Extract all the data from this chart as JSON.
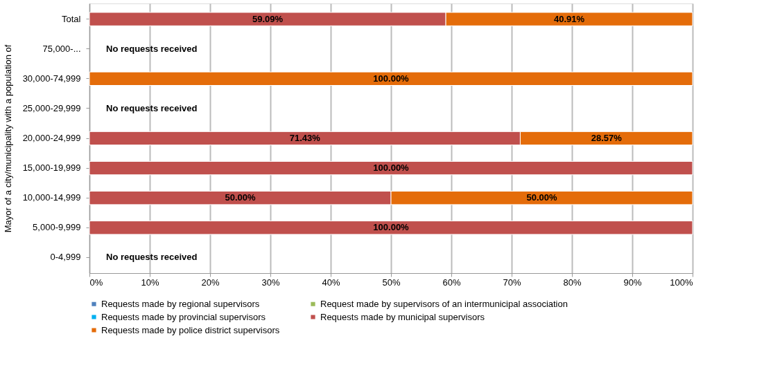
{
  "chart_data": {
    "type": "bar",
    "orientation": "horizontal",
    "stacked": true,
    "ylabel": "Mayor of a city/municipality with a population of",
    "categories": [
      "Total",
      "75,000-...",
      "30,000-74,999",
      "25,000-29,999",
      "20,000-24,999",
      "15,000-19,999",
      "10,000-14,999",
      "5,000-9,999",
      "0-4,999"
    ],
    "series": [
      {
        "name": "Requests made by regional supervisors",
        "color": "#4f81bd",
        "values": [
          null,
          null,
          null,
          null,
          null,
          null,
          null,
          null,
          null
        ]
      },
      {
        "name": "Request made by supervisors of an intermunicipal association",
        "color": "#9bbb59",
        "values": [
          null,
          null,
          null,
          null,
          null,
          null,
          null,
          null,
          null
        ]
      },
      {
        "name": "Requests made by provincial supervisors",
        "color": "#00b0f0",
        "values": [
          null,
          null,
          null,
          null,
          null,
          null,
          null,
          null,
          null
        ]
      },
      {
        "name": "Requests made by municipal supervisors",
        "color": "#c0504d",
        "values": [
          59.09,
          null,
          null,
          null,
          71.43,
          100,
          50,
          100,
          null
        ],
        "value_labels": [
          "59.09%",
          null,
          null,
          null,
          "71.43%",
          "100.00%",
          "50.00%",
          "100.00%",
          null
        ]
      },
      {
        "name": "Requests made by police district supervisors",
        "color": "#e46c0a",
        "values": [
          40.91,
          null,
          100,
          null,
          28.57,
          null,
          50,
          null,
          null
        ],
        "value_labels": [
          "40.91%",
          null,
          "100.00%",
          null,
          "28.57%",
          null,
          "50.00%",
          null,
          null
        ]
      }
    ],
    "xlim": [
      0,
      100
    ],
    "xticks": [
      {
        "value": 0,
        "label": "0%"
      },
      {
        "value": 10,
        "label": "10%"
      },
      {
        "value": 20,
        "label": "20%"
      },
      {
        "value": 30,
        "label": "30%"
      },
      {
        "value": 40,
        "label": "40%"
      },
      {
        "value": 50,
        "label": "50%"
      },
      {
        "value": 60,
        "label": "60%"
      },
      {
        "value": 70,
        "label": "70%"
      },
      {
        "value": 80,
        "label": "80%"
      },
      {
        "value": 90,
        "label": "90%"
      },
      {
        "value": 100,
        "label": "100%"
      }
    ],
    "annotations": [
      "No requests received",
      "No requests received",
      "No requests received"
    ],
    "grid": "x",
    "legend": "bottom"
  }
}
